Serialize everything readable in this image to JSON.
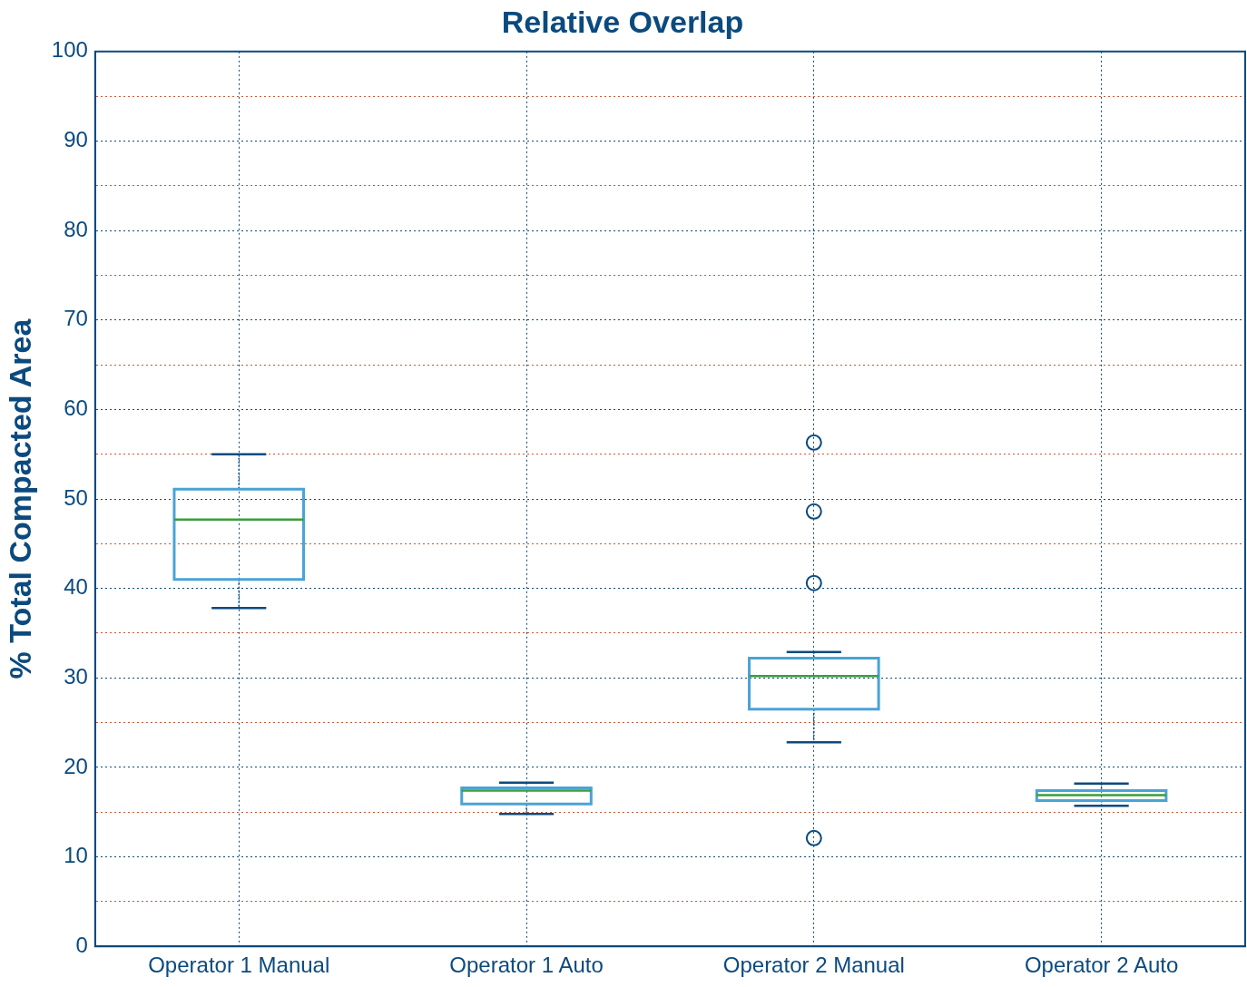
{
  "chart_data": {
    "type": "box",
    "title": "Relative Overlap",
    "ylabel": "% Total Compacted Area",
    "categories": [
      "Operator 1 Manual",
      "Operator 1 Auto",
      "Operator 2 Manual",
      "Operator 2 Auto"
    ],
    "series": [
      {
        "color": "#4aa3d6",
        "boxes": [
          {
            "low": 37.8,
            "q1": 41.0,
            "median": 47.7,
            "q3": 51.1,
            "high": 55.0
          },
          {
            "low": 14.8,
            "q1": 15.9,
            "median": 17.4,
            "q3": 17.7,
            "high": 18.3
          },
          {
            "low": 22.8,
            "q1": 26.5,
            "median": 30.2,
            "q3": 32.2,
            "high": 32.9,
            "outliers": [
              56.3,
              48.6,
              40.6,
              12.1
            ]
          },
          {
            "low": 15.7,
            "q1": 16.3,
            "median": 16.9,
            "q3": 17.4,
            "high": 18.2
          }
        ]
      }
    ],
    "ylim": [
      0,
      100
    ],
    "yticks": [
      0,
      {
        "value": 5,
        "label": null
      },
      10,
      {
        "value": 15,
        "label": null
      },
      20,
      {
        "value": 25,
        "label": null
      },
      30,
      {
        "value": 35,
        "label": null
      },
      40,
      {
        "value": 45,
        "label": null
      },
      50,
      {
        "value": 55,
        "label": null
      },
      60,
      {
        "value": 65,
        "label": null
      },
      70,
      {
        "value": 75,
        "label": null
      },
      80,
      {
        "value": 85,
        "label": null
      },
      90,
      {
        "value": 95,
        "label": null
      },
      100
    ],
    "grid": true,
    "legend": false
  }
}
